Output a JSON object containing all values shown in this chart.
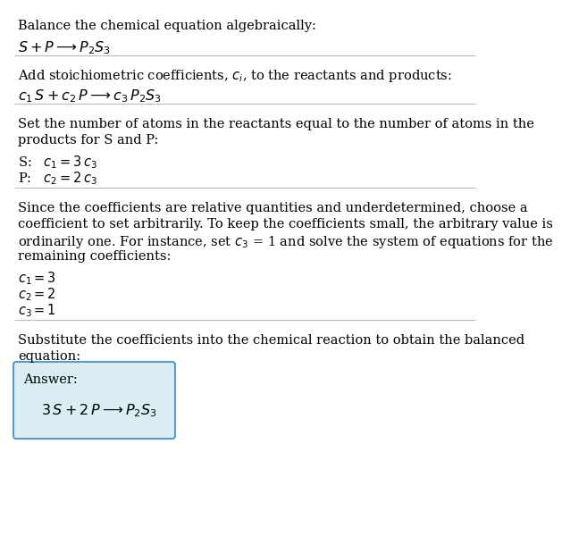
{
  "title_line": "Balance the chemical equation algebraically:",
  "section2_title": "Add stoichiometric coefficients, $c_i$, to the reactants and products:",
  "section3_line1": "Set the number of atoms in the reactants equal to the number of atoms in the",
  "section3_line2": "products for S and P:",
  "section4_line1": "Since the coefficients are relative quantities and underdetermined, choose a",
  "section4_line2": "coefficient to set arbitrarily. To keep the coefficients small, the arbitrary value is",
  "section4_line3": "ordinarily one. For instance, set $c_3$ = 1 and solve the system of equations for the",
  "section4_line4": "remaining coefficients:",
  "section5_line1": "Substitute the coefficients into the chemical reaction to obtain the balanced",
  "section5_line2": "equation:",
  "answer_label": "Answer:",
  "bg_color": "#ffffff",
  "text_color": "#000000",
  "box_bg": "#daeef3",
  "box_border": "#5b9bd5",
  "sep_color": "#bbbbbb",
  "fs": 10.5
}
